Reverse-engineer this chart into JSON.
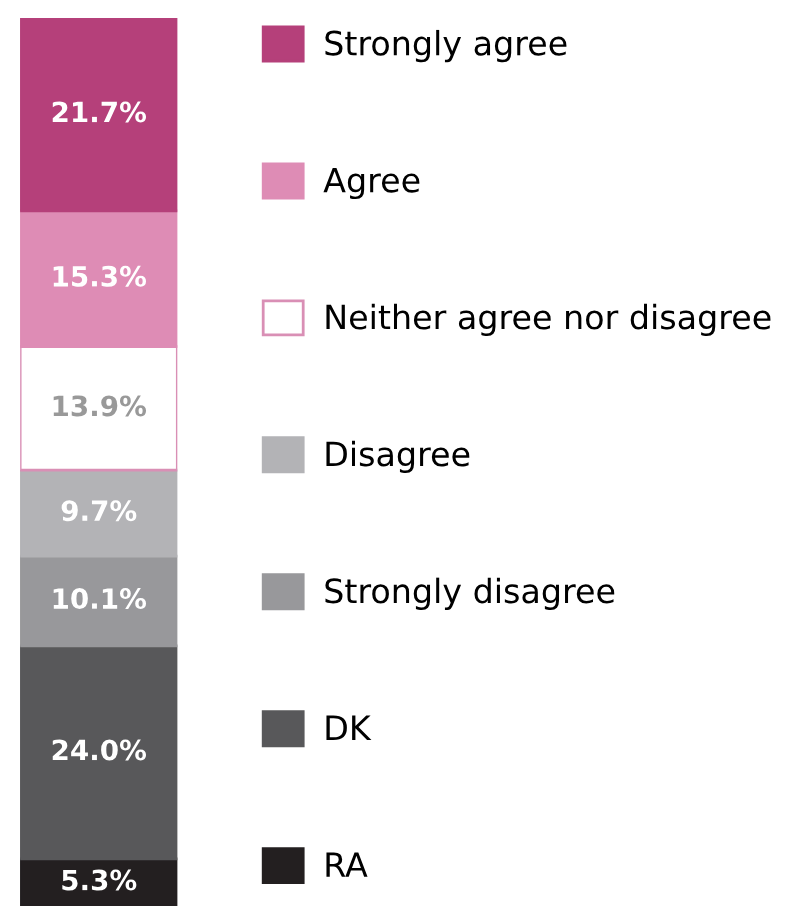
{
  "chart_data": {
    "type": "bar",
    "stacked": true,
    "categories": [
      null
    ],
    "tick_labels": false,
    "grid": false,
    "legend": "right",
    "series": [
      {
        "name": "RA",
        "color": "#231f20",
        "values": [
          5.3
        ],
        "value_labels": [
          "5.3%"
        ]
      },
      {
        "name": "DK",
        "color": "#58585a",
        "values": [
          24.0
        ],
        "value_labels": [
          "24.0%"
        ]
      },
      {
        "name": "Strongly disagree",
        "color": "#98989b",
        "values": [
          10.1
        ],
        "value_labels": [
          "10.1%"
        ]
      },
      {
        "name": "Disagree",
        "color": "#b3b3b6",
        "values": [
          9.7
        ],
        "value_labels": [
          "9.7%"
        ]
      },
      {
        "name": "Neither agree nor disagree",
        "color": "#ffffff",
        "values": [
          13.9
        ],
        "value_labels": [
          "13.9%"
        ]
      },
      {
        "name": "Agree",
        "color": "#de8cb5",
        "values": [
          15.3
        ],
        "value_labels": [
          "15.3%"
        ]
      },
      {
        "name": "Strongly agree",
        "color": "#b5407a",
        "values": [
          21.7
        ],
        "value_labels": [
          "21.7%"
        ]
      }
    ]
  }
}
